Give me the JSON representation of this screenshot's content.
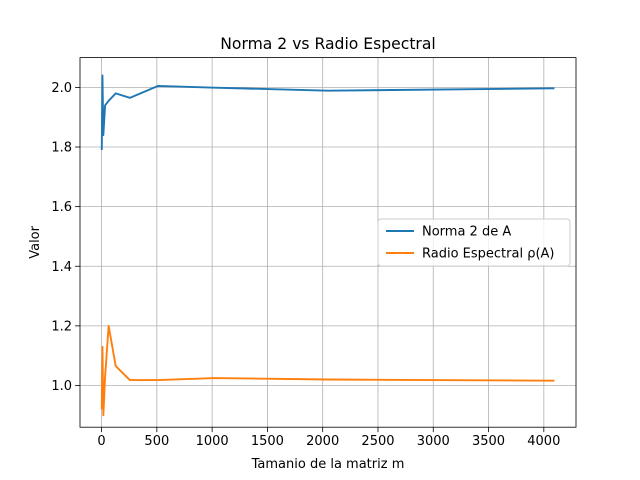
{
  "chart_data": {
    "type": "line",
    "title": "Norma 2 vs Radio Espectral",
    "xlabel": "Tamanio de la matriz m",
    "ylabel": "Valor",
    "xlim": [
      -195,
      4291
    ],
    "ylim": [
      0.86,
      2.1
    ],
    "x_ticks": [
      0,
      500,
      1000,
      1500,
      2000,
      2500,
      3000,
      3500,
      4000
    ],
    "y_ticks": [
      1.0,
      1.2,
      1.4,
      1.6,
      1.8,
      2.0
    ],
    "y_tick_labels": [
      "1.0",
      "1.2",
      "1.4",
      "1.6",
      "1.8",
      "2.0"
    ],
    "grid": true,
    "legend_position": "center-right",
    "series": [
      {
        "name": "Norma 2 de A",
        "color": "#1f77b4",
        "x": [
          2,
          8,
          16,
          32,
          64,
          128,
          256,
          512,
          1024,
          2048,
          4096
        ],
        "y": [
          1.79,
          2.04,
          1.84,
          1.94,
          1.955,
          1.98,
          1.965,
          2.005,
          1.999,
          1.989,
          1.997
        ]
      },
      {
        "name": "Radio Espectral ρ(A)",
        "color": "#ff7f0e",
        "x": [
          2,
          8,
          16,
          32,
          64,
          128,
          256,
          512,
          1024,
          2048,
          4096
        ],
        "y": [
          0.92,
          1.13,
          0.9,
          1.03,
          1.2,
          1.065,
          1.018,
          1.018,
          1.025,
          1.02,
          1.016
        ]
      }
    ]
  }
}
